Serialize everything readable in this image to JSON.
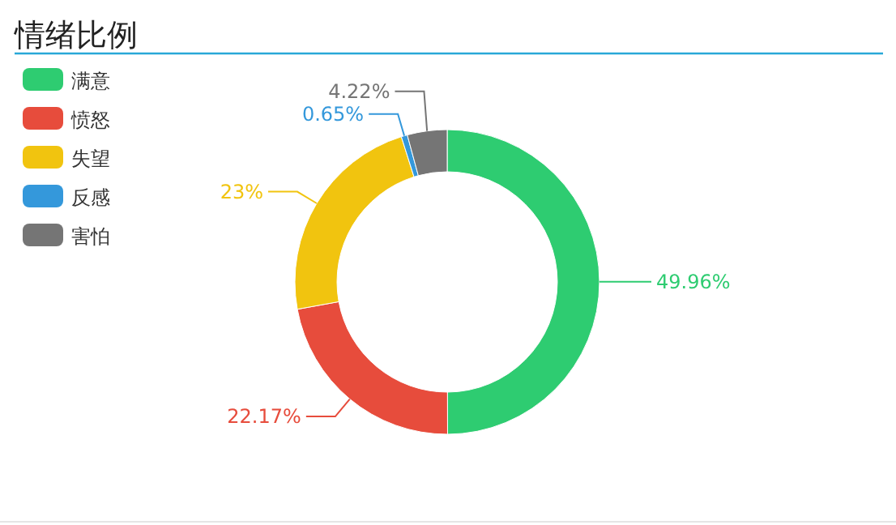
{
  "chart_data": {
    "type": "donut",
    "title": "情绪比例",
    "categories": [
      "满意",
      "愤怒",
      "失望",
      "反感",
      "害怕"
    ],
    "values": [
      49.96,
      22.17,
      23,
      0.65,
      4.22
    ],
    "colors": [
      "#2ecc71",
      "#e74c3c",
      "#f1c40f",
      "#3498db",
      "#757575"
    ],
    "value_labels": [
      "49.96%",
      "22.17%",
      "23%",
      "0.65%",
      "4.22%"
    ],
    "legend": "top left"
  }
}
